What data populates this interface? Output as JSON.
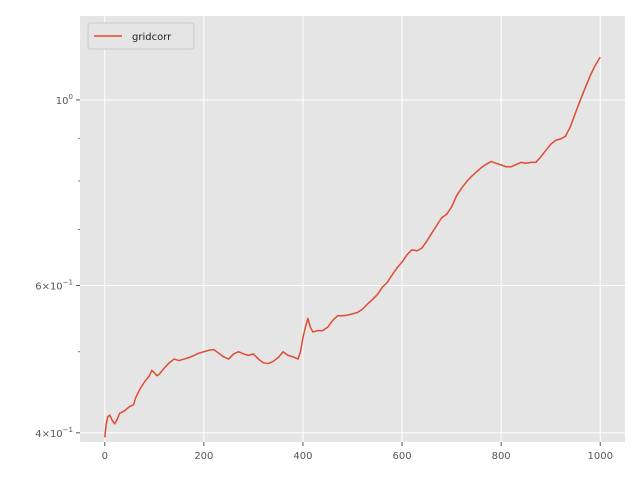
{
  "chart_data": {
    "type": "line",
    "title": "",
    "xlabel": "",
    "ylabel": "",
    "xlim": [
      -50,
      1050
    ],
    "ylim": [
      0.39,
      1.26
    ],
    "yscale": "log",
    "grid": true,
    "legend": {
      "placement": "top-left",
      "entries": [
        "gridcorr"
      ]
    },
    "x_ticks": [
      {
        "value": 0,
        "label": "0"
      },
      {
        "value": 200,
        "label": "200"
      },
      {
        "value": 400,
        "label": "400"
      },
      {
        "value": 600,
        "label": "600"
      },
      {
        "value": 800,
        "label": "800"
      },
      {
        "value": 1000,
        "label": "1000"
      }
    ],
    "y_major_ticks": [
      {
        "value": 0.4,
        "base": "4",
        "exp": "−1"
      },
      {
        "value": 0.6,
        "base": "6",
        "exp": "−1"
      },
      {
        "value": 1.0,
        "base": "10",
        "exp": "0"
      }
    ],
    "y_minor_ticks": [
      0.5,
      0.7,
      0.8,
      0.9
    ],
    "series": [
      {
        "name": "gridcorr",
        "color": "#E24A33",
        "points": [
          [
            0,
            0.395
          ],
          [
            3,
            0.41
          ],
          [
            6,
            0.418
          ],
          [
            10,
            0.42
          ],
          [
            15,
            0.414
          ],
          [
            20,
            0.41
          ],
          [
            25,
            0.415
          ],
          [
            30,
            0.422
          ],
          [
            40,
            0.425
          ],
          [
            50,
            0.43
          ],
          [
            58,
            0.432
          ],
          [
            62,
            0.44
          ],
          [
            70,
            0.45
          ],
          [
            80,
            0.46
          ],
          [
            90,
            0.468
          ],
          [
            95,
            0.475
          ],
          [
            100,
            0.472
          ],
          [
            105,
            0.468
          ],
          [
            110,
            0.47
          ],
          [
            120,
            0.478
          ],
          [
            130,
            0.485
          ],
          [
            140,
            0.49
          ],
          [
            150,
            0.488
          ],
          [
            160,
            0.49
          ],
          [
            170,
            0.492
          ],
          [
            180,
            0.495
          ],
          [
            190,
            0.498
          ],
          [
            200,
            0.5
          ],
          [
            210,
            0.502
          ],
          [
            220,
            0.503
          ],
          [
            230,
            0.498
          ],
          [
            240,
            0.493
          ],
          [
            250,
            0.49
          ],
          [
            260,
            0.497
          ],
          [
            270,
            0.5
          ],
          [
            280,
            0.497
          ],
          [
            290,
            0.495
          ],
          [
            300,
            0.497
          ],
          [
            310,
            0.49
          ],
          [
            320,
            0.485
          ],
          [
            330,
            0.484
          ],
          [
            340,
            0.487
          ],
          [
            350,
            0.492
          ],
          [
            360,
            0.5
          ],
          [
            370,
            0.495
          ],
          [
            380,
            0.493
          ],
          [
            390,
            0.49
          ],
          [
            395,
            0.5
          ],
          [
            400,
            0.52
          ],
          [
            405,
            0.535
          ],
          [
            410,
            0.548
          ],
          [
            415,
            0.535
          ],
          [
            420,
            0.528
          ],
          [
            430,
            0.53
          ],
          [
            440,
            0.53
          ],
          [
            450,
            0.535
          ],
          [
            460,
            0.545
          ],
          [
            470,
            0.552
          ],
          [
            480,
            0.552
          ],
          [
            490,
            0.553
          ],
          [
            500,
            0.555
          ],
          [
            510,
            0.557
          ],
          [
            520,
            0.562
          ],
          [
            530,
            0.57
          ],
          [
            540,
            0.577
          ],
          [
            550,
            0.585
          ],
          [
            560,
            0.597
          ],
          [
            570,
            0.605
          ],
          [
            580,
            0.618
          ],
          [
            590,
            0.63
          ],
          [
            600,
            0.64
          ],
          [
            610,
            0.653
          ],
          [
            620,
            0.662
          ],
          [
            630,
            0.66
          ],
          [
            640,
            0.665
          ],
          [
            650,
            0.678
          ],
          [
            660,
            0.693
          ],
          [
            670,
            0.708
          ],
          [
            680,
            0.723
          ],
          [
            690,
            0.73
          ],
          [
            700,
            0.745
          ],
          [
            710,
            0.768
          ],
          [
            720,
            0.784
          ],
          [
            730,
            0.798
          ],
          [
            740,
            0.81
          ],
          [
            750,
            0.82
          ],
          [
            760,
            0.83
          ],
          [
            770,
            0.838
          ],
          [
            780,
            0.844
          ],
          [
            790,
            0.84
          ],
          [
            800,
            0.836
          ],
          [
            810,
            0.832
          ],
          [
            820,
            0.832
          ],
          [
            830,
            0.837
          ],
          [
            840,
            0.842
          ],
          [
            850,
            0.84
          ],
          [
            860,
            0.842
          ],
          [
            870,
            0.842
          ],
          [
            880,
            0.855
          ],
          [
            890,
            0.87
          ],
          [
            900,
            0.885
          ],
          [
            910,
            0.895
          ],
          [
            920,
            0.898
          ],
          [
            930,
            0.905
          ],
          [
            940,
            0.93
          ],
          [
            950,
            0.965
          ],
          [
            960,
            1.0
          ],
          [
            970,
            1.035
          ],
          [
            980,
            1.07
          ],
          [
            990,
            1.1
          ],
          [
            1000,
            1.125
          ]
        ]
      }
    ]
  }
}
